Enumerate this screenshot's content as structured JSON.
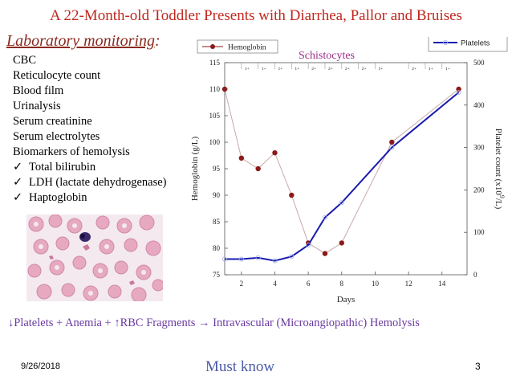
{
  "slide": {
    "title": "A 22-Month-old Toddler Presents with Diarrhea, Pallor and Bruises",
    "lab_heading": "Laboratory monitoring",
    "lab_heading_suffix": ":",
    "lab_items": [
      {
        "text": "CBC",
        "checked": false
      },
      {
        "text": "Reticulocyte count",
        "checked": false
      },
      {
        "text": "Blood film",
        "checked": false
      },
      {
        "text": "Urinalysis",
        "checked": false
      },
      {
        "text": "Serum creatinine",
        "checked": false
      },
      {
        "text": "Serum electrolytes",
        "checked": false
      },
      {
        "text": "Biomarkers of hemolysis",
        "checked": false
      },
      {
        "text": "Total bilirubin",
        "checked": true
      },
      {
        "text": "LDH (lactate dehydrogenase)",
        "checked": true
      },
      {
        "text": "Haptoglobin",
        "checked": true
      }
    ],
    "checkmark": "✓",
    "summary": "↓Platelets + Anemia + ↑RBC Fragments → Intravascular (Microangiopathic) Hemolysis",
    "footer_date": "9/26/2018",
    "footer_note": "Must know",
    "slide_number": "3",
    "schisto_label": "Schistocytes",
    "colors": {
      "title": "#c0281e",
      "heading": "#8b2a1f",
      "summary": "#6a3aa0",
      "footer_note": "#4a5aa8",
      "schisto": "#9b2d86",
      "hemoglobin": "#8b1a1a",
      "platelets": "#1a1ab0"
    }
  },
  "chart_data": {
    "type": "line",
    "xlabel": "Days",
    "ylabel_left": "Hemoglobin (g/L)",
    "ylabel_right": "Platelet count (x10",
    "ylabel_right_sup": "9",
    "ylabel_right_suffix": "/L)",
    "xlim": [
      1,
      15.5
    ],
    "x_ticks": [
      2,
      4,
      6,
      8,
      10,
      12,
      14
    ],
    "ylim_left": [
      75,
      115
    ],
    "y_ticks_left": [
      75,
      80,
      85,
      90,
      95,
      100,
      105,
      110,
      115
    ],
    "ylim_right": [
      0,
      500
    ],
    "y_ticks_right": [
      0,
      100,
      200,
      300,
      400,
      500
    ],
    "top_markers": [
      "1+",
      "1+",
      "1+",
      "1+",
      "2+",
      "2+",
      "2+",
      "2+",
      "1+",
      "2+",
      "1+",
      "1+"
    ],
    "top_marker_x": [
      2,
      3,
      4,
      5,
      6,
      7,
      8,
      9,
      10,
      12,
      13,
      14
    ],
    "legend_position": "top",
    "series": [
      {
        "name": "Hemoglobin",
        "axis": "left",
        "x": [
          1,
          2,
          3,
          4,
          5,
          6,
          7,
          8,
          11,
          15
        ],
        "values": [
          110,
          97,
          95,
          98,
          90,
          81,
          79,
          81,
          100,
          110
        ]
      },
      {
        "name": "Platelets",
        "axis": "right",
        "x": [
          1,
          2,
          3,
          4,
          5,
          6,
          7,
          8,
          11,
          15
        ],
        "values": [
          37,
          37,
          40,
          33,
          43,
          70,
          135,
          170,
          300,
          430
        ]
      }
    ]
  }
}
